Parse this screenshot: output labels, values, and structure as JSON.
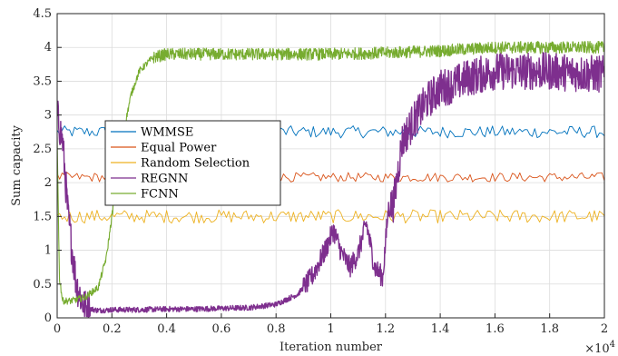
{
  "chart_data": {
    "type": "line",
    "xlabel": "Iteration number",
    "ylabel": "Sum capacity",
    "x_multiplier_label": "×10",
    "x_multiplier_exponent": "4",
    "xlim": [
      0,
      20000
    ],
    "ylim": [
      0,
      4.5
    ],
    "xticks": [
      0,
      2000,
      4000,
      6000,
      8000,
      10000,
      12000,
      14000,
      16000,
      18000,
      20000
    ],
    "xtick_labels": [
      "0",
      "0.2",
      "0.4",
      "0.6",
      "0.8",
      "1",
      "1.2",
      "1.4",
      "1.6",
      "1.8",
      "2"
    ],
    "yticks": [
      0,
      0.5,
      1,
      1.5,
      2,
      2.5,
      3,
      3.5,
      4,
      4.5
    ],
    "ytick_labels": [
      "0",
      "0.5",
      "1",
      "1.5",
      "2",
      "2.5",
      "3",
      "3.5",
      "4",
      "4.5"
    ],
    "grid": true,
    "legend_position": "center-left",
    "series": [
      {
        "name": "WMMSE",
        "color": "#0072BD",
        "style": "noisy",
        "x": [
          0,
          20000
        ],
        "y": [
          2.75,
          2.75
        ],
        "noise": 0.09
      },
      {
        "name": "Equal Power",
        "color": "#D95319",
        "style": "noisy",
        "x": [
          0,
          20000
        ],
        "y": [
          2.08,
          2.08
        ],
        "noise": 0.07
      },
      {
        "name": "Random Selection",
        "color": "#EDB120",
        "style": "noisy",
        "x": [
          0,
          20000
        ],
        "y": [
          1.5,
          1.5
        ],
        "noise": 0.1
      },
      {
        "name": "REGNN",
        "color": "#7E2F8E",
        "style": "dense",
        "x": [
          0,
          200,
          400,
          700,
          1000,
          1500,
          2000,
          3000,
          4000,
          5000,
          6000,
          7000,
          8000,
          8800,
          9300,
          9800,
          10100,
          10400,
          10700,
          11000,
          11300,
          11600,
          11900,
          12100,
          12300,
          12600,
          13000,
          13500,
          14000,
          14500,
          15000,
          15500,
          16000,
          17000,
          18000,
          19000,
          20000
        ],
        "y": [
          3.0,
          2.6,
          1.5,
          0.5,
          0.15,
          0.11,
          0.12,
          0.12,
          0.13,
          0.13,
          0.14,
          0.15,
          0.2,
          0.35,
          0.6,
          1.0,
          1.3,
          0.95,
          0.75,
          0.95,
          1.4,
          0.75,
          0.6,
          1.6,
          1.7,
          2.6,
          2.9,
          3.2,
          3.4,
          3.45,
          3.55,
          3.6,
          3.65,
          3.65,
          3.65,
          3.62,
          3.6
        ],
        "noise": 0.28
      },
      {
        "name": "FCNN",
        "color": "#77AC30",
        "style": "dense",
        "x": [
          0,
          80,
          200,
          500,
          1000,
          1500,
          1800,
          2100,
          2400,
          2700,
          3000,
          3500,
          4000,
          6000,
          8000,
          10000,
          12000,
          14000,
          16000,
          18000,
          20000
        ],
        "y": [
          2.7,
          0.6,
          0.25,
          0.25,
          0.3,
          0.45,
          0.9,
          1.8,
          2.7,
          3.3,
          3.65,
          3.85,
          3.9,
          3.9,
          3.9,
          3.9,
          3.92,
          3.95,
          4.0,
          4.0,
          4.0
        ],
        "noise": 0.09
      }
    ]
  }
}
